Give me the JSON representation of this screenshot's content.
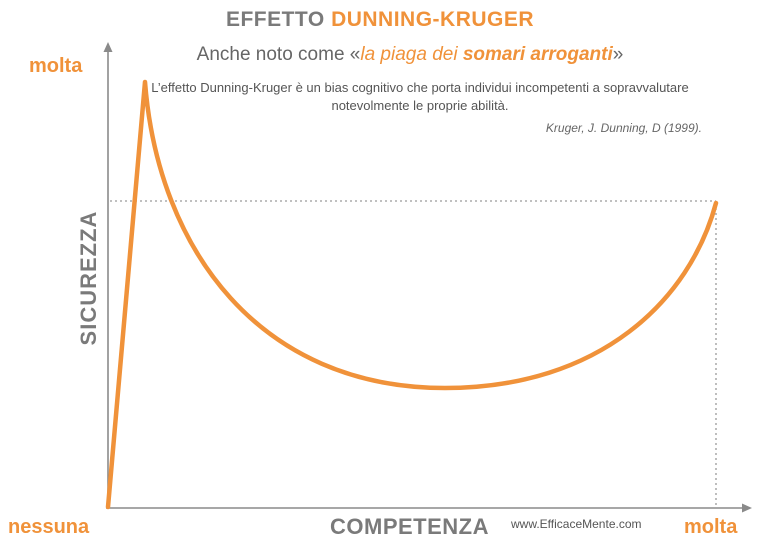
{
  "title": {
    "part1": "EFFETTO",
    "part2": "DUNNING-KRUGER"
  },
  "subtitle": {
    "prefix": "Anche noto come «",
    "italic": "la piaga dei ",
    "bold": "somari arroganti",
    "suffix": "»"
  },
  "description": "L’effetto Dunning-Kruger è un bias cognitivo che porta individui incompetenti a sopravvalutare notevolmente le proprie abilità.",
  "citation": "Kruger, J. Dunning, D (1999).",
  "axes": {
    "y_label": "SICUREZZA",
    "x_label": "COMPETENZA",
    "y_top_label": "molta",
    "origin_label": "nessuna",
    "x_right_label": "molta"
  },
  "website": "www.EfficaceMente.com",
  "colors": {
    "accent": "#f0923a",
    "axis": "#7a7a7a",
    "text": "#555555"
  }
}
